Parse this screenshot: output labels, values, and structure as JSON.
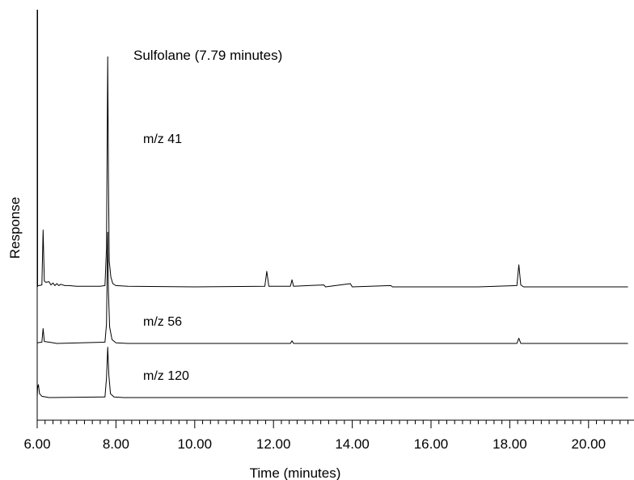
{
  "chart_data": {
    "type": "line",
    "title": "",
    "xlabel": "Time (minutes)",
    "ylabel": "Response",
    "xlim": [
      6.0,
      21.0
    ],
    "x_ticks": [
      "6.00",
      "8.00",
      "10.00",
      "12.00",
      "14.00",
      "16.00",
      "18.00",
      "20.00"
    ],
    "grid": false,
    "legend": "none",
    "annotations": [
      "Sulfolane (7.79 minutes)"
    ],
    "series": [
      {
        "name": "m/z 41",
        "baseline": 0,
        "points": [
          [
            6.0,
            0.3
          ],
          [
            6.02,
            0.2
          ],
          [
            6.05,
            0.2
          ],
          [
            6.12,
            0.3
          ],
          [
            6.15,
            8.8
          ],
          [
            6.18,
            0.9
          ],
          [
            6.22,
            0.7
          ],
          [
            6.3,
            0.8
          ],
          [
            6.35,
            0.3
          ],
          [
            6.4,
            0.6
          ],
          [
            6.45,
            0.2
          ],
          [
            6.5,
            0.5
          ],
          [
            6.55,
            0.2
          ],
          [
            6.6,
            0.4
          ],
          [
            6.7,
            0.2
          ],
          [
            6.8,
            0.2
          ],
          [
            7.0,
            0.1
          ],
          [
            7.3,
            0.1
          ],
          [
            7.6,
            0.1
          ],
          [
            7.72,
            0.2
          ],
          [
            7.76,
            6.0
          ],
          [
            7.79,
            35.6
          ],
          [
            7.81,
            17.0
          ],
          [
            7.83,
            4.0
          ],
          [
            7.87,
            1.5
          ],
          [
            7.92,
            0.5
          ],
          [
            8.0,
            0.2
          ],
          [
            8.3,
            0.1
          ],
          [
            10.0,
            0.0
          ],
          [
            11.78,
            0.1
          ],
          [
            11.83,
            2.4
          ],
          [
            11.88,
            0.1
          ],
          [
            12.43,
            0.1
          ],
          [
            12.47,
            1.1
          ],
          [
            12.51,
            0.1
          ],
          [
            13.28,
            0.3
          ],
          [
            13.32,
            0.0
          ],
          [
            13.95,
            0.5
          ],
          [
            14.0,
            0.0
          ],
          [
            14.98,
            0.2
          ],
          [
            15.02,
            0.0
          ],
          [
            17.2,
            0.0
          ],
          [
            18.18,
            0.2
          ],
          [
            18.23,
            3.4
          ],
          [
            18.28,
            0.3
          ],
          [
            18.35,
            0.0
          ],
          [
            21.0,
            0.0
          ]
        ]
      },
      {
        "name": "m/z 56",
        "baseline": 0,
        "points": [
          [
            6.0,
            0.1
          ],
          [
            6.12,
            0.2
          ],
          [
            6.15,
            2.3
          ],
          [
            6.18,
            0.3
          ],
          [
            6.3,
            0.2
          ],
          [
            6.5,
            0.0
          ],
          [
            7.72,
            0.2
          ],
          [
            7.76,
            3.0
          ],
          [
            7.79,
            17.2
          ],
          [
            7.81,
            8.0
          ],
          [
            7.84,
            2.5
          ],
          [
            7.9,
            0.6
          ],
          [
            8.0,
            0.1
          ],
          [
            8.3,
            0.0
          ],
          [
            12.43,
            0.0
          ],
          [
            12.47,
            0.4
          ],
          [
            12.51,
            0.0
          ],
          [
            18.18,
            0.0
          ],
          [
            18.23,
            0.8
          ],
          [
            18.28,
            0.0
          ],
          [
            21.0,
            0.0
          ]
        ]
      },
      {
        "name": "m/z 120",
        "baseline": 0,
        "points": [
          [
            6.0,
            0.1
          ],
          [
            6.01,
            1.5
          ],
          [
            6.03,
            2.0
          ],
          [
            6.06,
            0.6
          ],
          [
            6.12,
            0.2
          ],
          [
            6.3,
            0.0
          ],
          [
            7.72,
            0.1
          ],
          [
            7.76,
            3.0
          ],
          [
            7.79,
            7.8
          ],
          [
            7.82,
            3.5
          ],
          [
            7.86,
            0.6
          ],
          [
            7.95,
            0.1
          ],
          [
            8.2,
            0.0
          ],
          [
            21.0,
            0.0
          ]
        ]
      }
    ],
    "axis_peak": {
      "x": 6.0,
      "note": "solvent front rising off-scale at the y-axis"
    }
  }
}
